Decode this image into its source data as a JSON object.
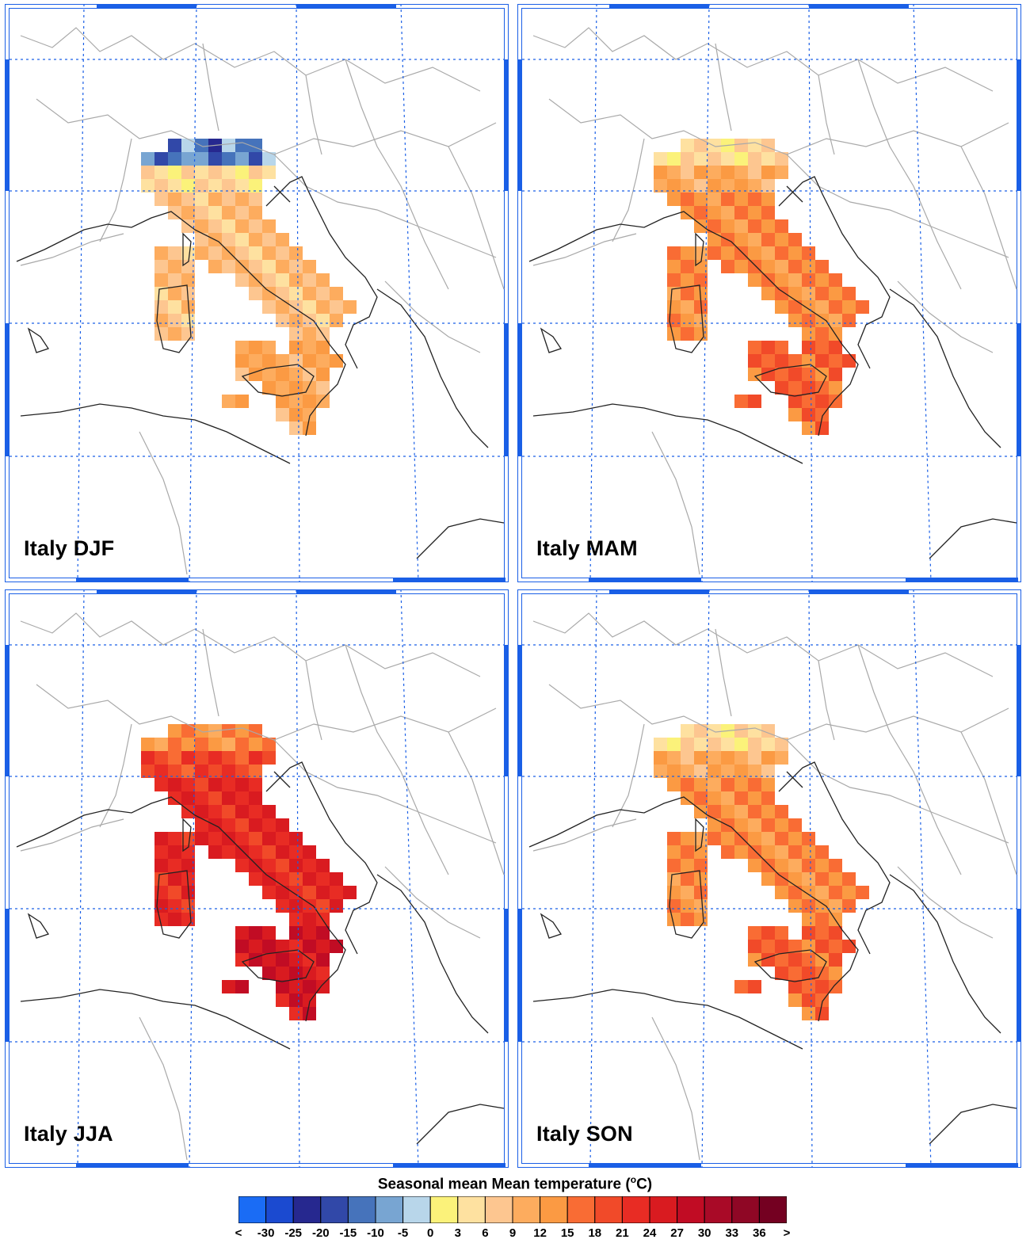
{
  "panels": [
    {
      "id": "djf",
      "label": "Italy DJF",
      "season": "DJF",
      "base_index": 9
    },
    {
      "id": "mam",
      "label": "Italy MAM",
      "season": "MAM",
      "base_index": 11
    },
    {
      "id": "jja",
      "label": "Italy JJA",
      "season": "JJA",
      "base_index": 14
    },
    {
      "id": "son",
      "label": "Italy SON",
      "season": "SON",
      "base_index": 11
    }
  ],
  "legend": {
    "title_prefix": "Seasonal mean Mean temperature (",
    "title_unit": "o",
    "title_suffix": "C)",
    "tick_labels": [
      "<",
      "-30",
      "-25",
      "-20",
      "-15",
      "-10",
      "-5",
      "0",
      "3",
      "6",
      "9",
      "12",
      "15",
      "18",
      "21",
      "24",
      "27",
      "30",
      "33",
      "36",
      ">"
    ],
    "colors": [
      "#1a6cf5",
      "#1b4ad0",
      "#26288f",
      "#3148a8",
      "#4673bb",
      "#78a5d2",
      "#b8d6ea",
      "#fbf27a",
      "#fee1a0",
      "#fdc690",
      "#fdac5e",
      "#fb9a43",
      "#f96c34",
      "#f14a29",
      "#e82c24",
      "#d91b20",
      "#c10c24",
      "#a90a27",
      "#8f0725",
      "#740021"
    ]
  },
  "map": {
    "grid_line_color": "#1a5fe6",
    "frame_color": "#1a5fe6",
    "land_border_color": "#a9a9a9",
    "coast_color": "#222222"
  }
}
